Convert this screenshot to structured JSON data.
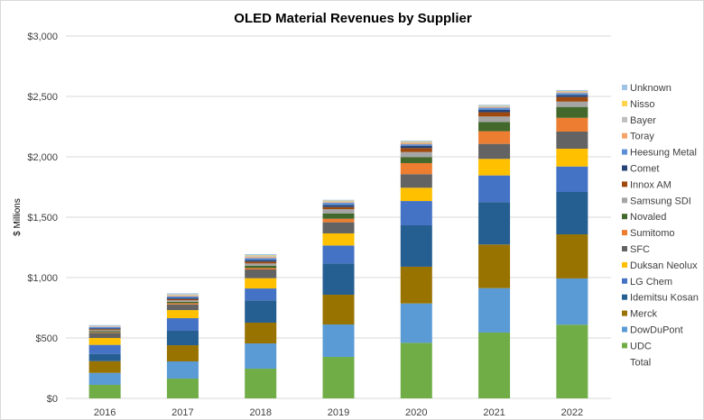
{
  "chart_data": {
    "type": "bar",
    "stacked": true,
    "title": "OLED Material Revenues by Supplier",
    "xlabel": "",
    "ylabel": "$ Millions",
    "ylim": [
      0,
      3000
    ],
    "yticks": [
      "$0",
      "$500",
      "$1,000",
      "$1,500",
      "$2,000",
      "$2,500",
      "$3,000"
    ],
    "grid": true,
    "legend": "right",
    "categories": [
      "2016",
      "2017",
      "2018",
      "2019",
      "2020",
      "2021",
      "2022"
    ],
    "series": [
      {
        "name": "UDC",
        "color": "#70AD47",
        "values": [
          112,
          164,
          246,
          343,
          460,
          545,
          610
        ]
      },
      {
        "name": "DowDuPont",
        "color": "#5B9BD5",
        "values": [
          99,
          142,
          209,
          269,
          326,
          368,
          383
        ]
      },
      {
        "name": "Merck",
        "color": "#997300",
        "values": [
          97,
          134,
          172,
          246,
          304,
          361,
          365
        ]
      },
      {
        "name": "Idemitsu Kosan",
        "color": "#255E91",
        "values": [
          60,
          120,
          184,
          259,
          343,
          350,
          351
        ]
      },
      {
        "name": "LG Chem",
        "color": "#4472C4",
        "values": [
          75,
          104,
          99,
          149,
          201,
          222,
          211
        ]
      },
      {
        "name": "Duksan Neolux",
        "color": "#FFC000",
        "values": [
          57,
          67,
          85,
          100,
          110,
          137,
          147
        ]
      },
      {
        "name": "SFC",
        "color": "#636363",
        "values": [
          42,
          47,
          72,
          92,
          112,
          124,
          142
        ]
      },
      {
        "name": "Sumitomo",
        "color": "#ED7D31",
        "values": [
          5,
          10,
          12,
          29,
          92,
          105,
          114
        ]
      },
      {
        "name": "Novaled",
        "color": "#43682B",
        "values": [
          10,
          12,
          20,
          45,
          50,
          77,
          90
        ]
      },
      {
        "name": "Samsung SDI",
        "color": "#A5A5A5",
        "values": [
          8,
          12,
          18,
          35,
          42,
          45,
          44
        ]
      },
      {
        "name": "Innox AM",
        "color": "#9E480E",
        "values": [
          8,
          10,
          15,
          17,
          32,
          35,
          38
        ]
      },
      {
        "name": "Comet",
        "color": "#264478",
        "values": [
          8,
          10,
          15,
          18,
          20,
          19,
          18
        ]
      },
      {
        "name": "Heesung Metal",
        "color": "#5B8FD6",
        "values": [
          10,
          12,
          15,
          17,
          12,
          18,
          15
        ]
      },
      {
        "name": "Toray",
        "color": "#F4A46A",
        "values": [
          3,
          6,
          8,
          5,
          8,
          5,
          5
        ]
      },
      {
        "name": "Bayer",
        "color": "#BFBFBF",
        "values": [
          3,
          6,
          8,
          8,
          10,
          8,
          8
        ]
      },
      {
        "name": "Nisso",
        "color": "#FFD34D",
        "values": [
          2,
          4,
          6,
          5,
          5,
          4,
          4
        ]
      },
      {
        "name": "Unknown",
        "color": "#9DC3E6",
        "values": [
          8,
          10,
          10,
          7,
          7,
          8,
          7
        ]
      }
    ],
    "legend_extra": "Total"
  }
}
